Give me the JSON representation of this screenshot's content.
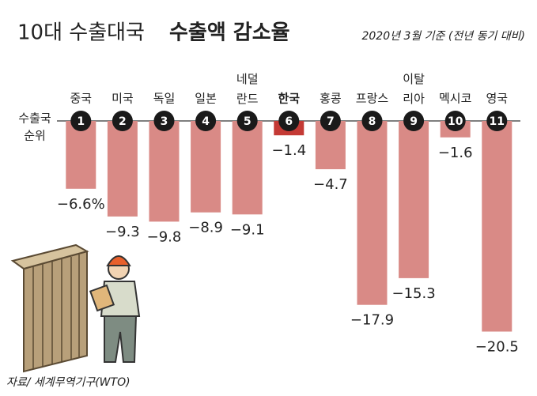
{
  "chart_data": {
    "type": "bar",
    "title": "10대 수출대국",
    "title_bold": "수출액 감소율",
    "subtitle": "2020년 3월 기준 (전년 동기 대비)",
    "axis_label": [
      "수출국",
      "순위"
    ],
    "source": "자료/ 세계무역기구(WTO)",
    "categories": [
      "중국",
      "미국",
      "독일",
      "일본",
      "네덜란드",
      "한국",
      "홍콩",
      "프랑스",
      "이탈리아",
      "멕시코",
      "영국"
    ],
    "ranks": [
      1,
      2,
      3,
      4,
      5,
      6,
      7,
      8,
      9,
      10,
      11
    ],
    "values": [
      -6.6,
      -9.3,
      -9.8,
      -8.9,
      -9.1,
      -1.4,
      -4.7,
      -17.9,
      -15.3,
      -1.6,
      -20.5
    ],
    "value_labels": [
      "−6.6%",
      "−9.3",
      "−9.8",
      "−8.9",
      "−9.1",
      "−1.4",
      "−4.7",
      "−17.9",
      "−15.3",
      "−1.6",
      "−20.5"
    ],
    "color": "#d98a86",
    "highlight_color": "#c43a35",
    "highlight_category": "한국",
    "ylim": [
      -21,
      0
    ]
  }
}
